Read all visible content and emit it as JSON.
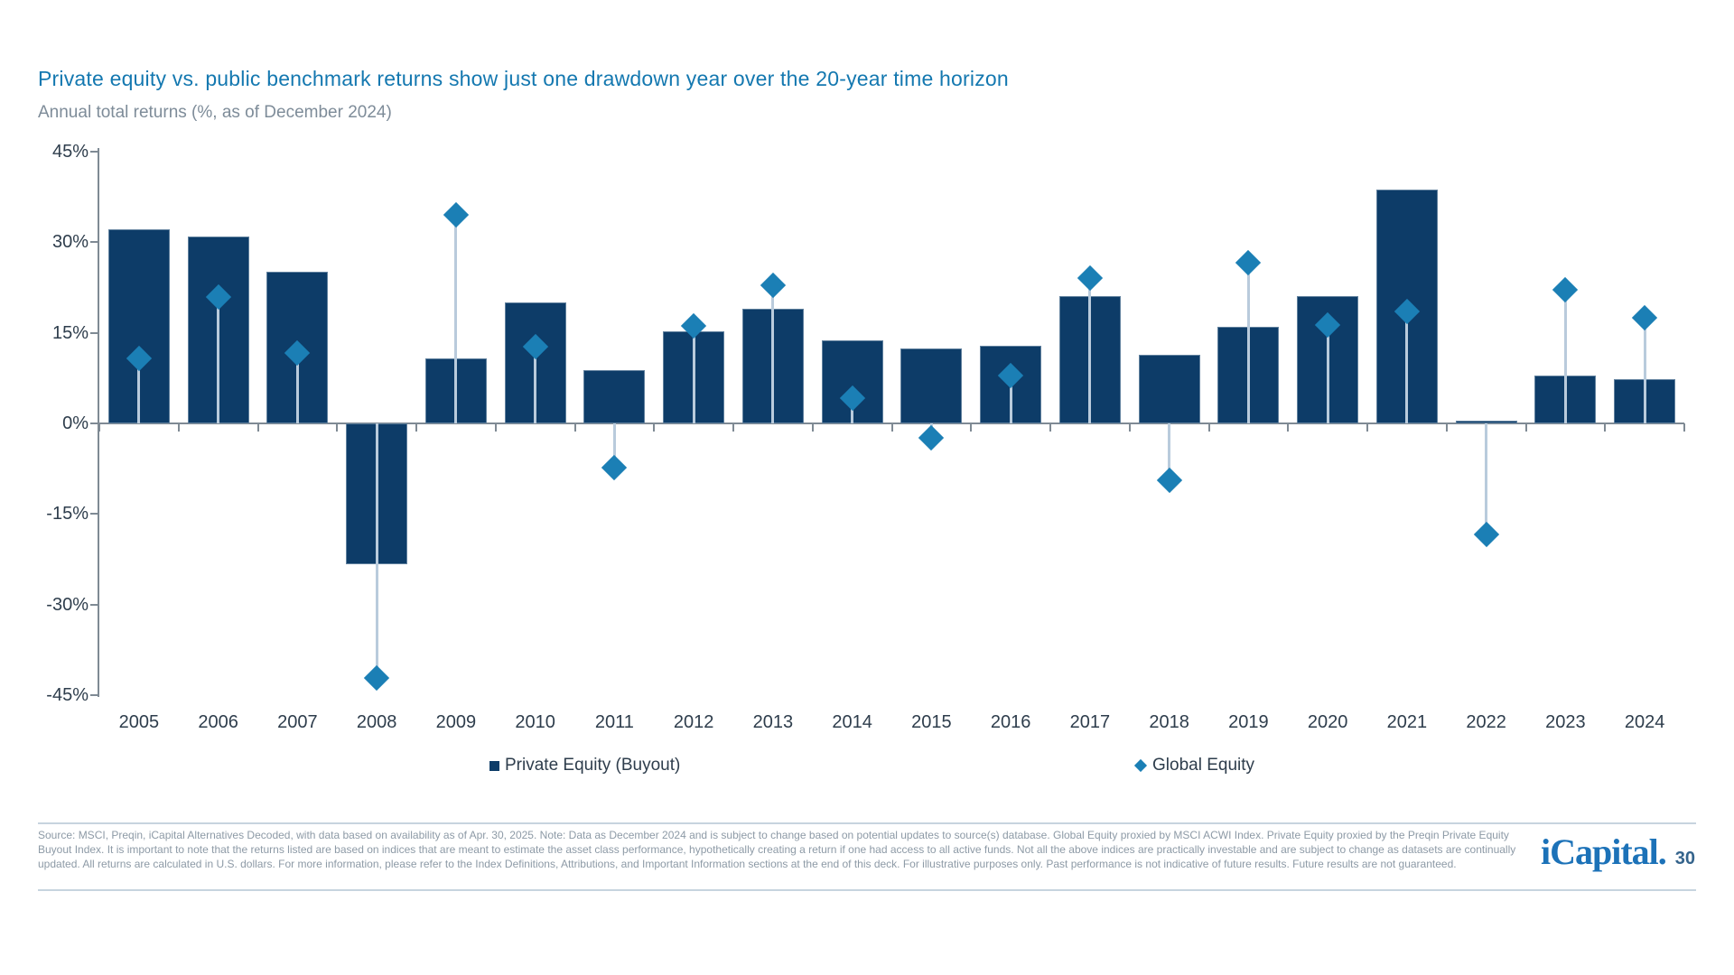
{
  "header": {
    "title": "Private equity vs. public benchmark returns show just one drawdown year over the 20-year time horizon",
    "subtitle": "Annual total returns (%, as of December 2024)"
  },
  "chart_data": {
    "type": "bar",
    "title": "Private equity vs. public benchmark returns show just one drawdown year over the 20-year time horizon",
    "subtitle": "Annual total returns (%, as of December 2024)",
    "categories": [
      "2005",
      "2006",
      "2007",
      "2008",
      "2009",
      "2010",
      "2011",
      "2012",
      "2013",
      "2014",
      "2015",
      "2016",
      "2017",
      "2018",
      "2019",
      "2020",
      "2021",
      "2022",
      "2023",
      "2024"
    ],
    "series": [
      {
        "name": "Private Equity (Buyout)",
        "mark": "bar",
        "color": "#0d3c68",
        "values": [
          32.2,
          30.9,
          25.1,
          -23.3,
          10.8,
          20.1,
          8.8,
          15.3,
          19.0,
          13.8,
          12.4,
          12.9,
          21.1,
          11.3,
          16.0,
          21.1,
          38.7,
          0.4,
          7.9,
          7.3
        ]
      },
      {
        "name": "Global Equity",
        "mark": "diamond",
        "color": "#1b7fb5",
        "values": [
          10.8,
          21.0,
          11.7,
          -42.2,
          34.6,
          12.7,
          -7.3,
          16.1,
          22.8,
          4.2,
          -2.4,
          7.9,
          24.0,
          -9.4,
          26.6,
          16.3,
          18.5,
          -18.4,
          22.2,
          17.5
        ]
      }
    ],
    "xlabel": "",
    "ylabel": "",
    "ylim": [
      -45,
      45
    ],
    "yticks": [
      45,
      30,
      15,
      0,
      -15,
      -30,
      -45
    ],
    "ytick_suffix": "%",
    "grid": false,
    "legend_position": "bottom",
    "colors": {
      "bar": "#0d3c68",
      "diamond": "#1b7fb5",
      "connector": "#b9cbdc",
      "axis": "#7f8a94",
      "tick_label": "#2e3d4c",
      "title": "#1478b0",
      "subtitle": "#7e8c99"
    }
  },
  "footer": {
    "disclaimer": "Source: MSCI, Preqin, iCapital Alternatives Decoded, with data based on availability as of Apr. 30, 2025. Note: Data as December 2024 and is subject to change based on potential updates to source(s) database. Global Equity proxied by MSCI ACWI Index. Private Equity proxied by the Preqin Private Equity Buyout Index. It is important to note that the returns listed are based on indices that are meant to estimate the asset class performance, hypothetically creating a return if one had access to all active funds. Not all the above indices are practically investable and are subject to change as datasets are continually updated. All returns are calculated in U.S. dollars. For more information, please refer to the Index Definitions, Attributions, and Important Information sections at the end of this deck. For illustrative purposes only. Past performance is not indicative of future results. Future results are not guaranteed.",
    "logo_text": "iCapital.",
    "page_number": "30"
  }
}
